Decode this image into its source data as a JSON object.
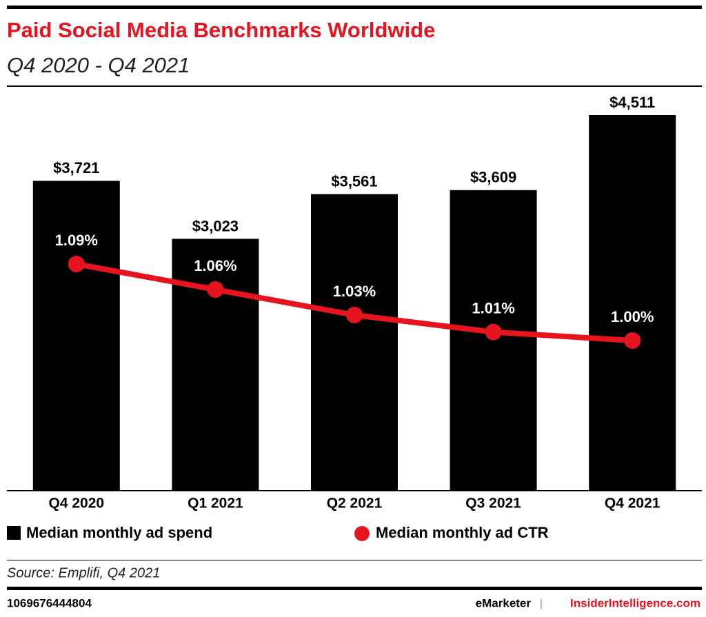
{
  "chart_data": {
    "type": "bar_line",
    "title": "Paid Social Media Benchmarks Worldwide",
    "subtitle": "Q4 2020 - Q4 2021",
    "categories": [
      "Q4 2020",
      "Q1 2021",
      "Q2 2021",
      "Q3 2021",
      "Q4 2021"
    ],
    "series": [
      {
        "name": "Median monthly ad spend",
        "color": "#000000",
        "type": "bar",
        "values": [
          3721,
          3023,
          3561,
          3609,
          4511
        ],
        "value_labels": [
          "$3,721",
          "$3,023",
          "$3,561",
          "$3,609",
          "$4,511"
        ]
      },
      {
        "name": "Median monthly ad CTR",
        "color": "#e5141e",
        "type": "line",
        "axis": "y2",
        "values": [
          1.09,
          1.06,
          1.03,
          1.01,
          1.0
        ],
        "value_labels": [
          "1.09%",
          "1.06%",
          "1.03%",
          "1.01%",
          "1.00%"
        ]
      }
    ],
    "source": "Source: Emplifi, Q4 2021",
    "footer_id": "1069676444804",
    "brand": "eMarketer",
    "site": "InsiderIntelligence.com"
  }
}
